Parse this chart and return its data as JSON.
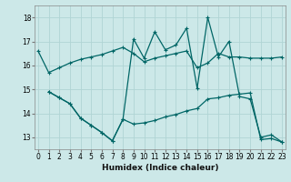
{
  "xlabel": "Humidex (Indice chaleur)",
  "xlim": [
    -0.3,
    23.3
  ],
  "ylim": [
    12.5,
    18.5
  ],
  "yticks": [
    13,
    14,
    15,
    16,
    17,
    18
  ],
  "xticks": [
    0,
    1,
    2,
    3,
    4,
    5,
    6,
    7,
    8,
    9,
    10,
    11,
    12,
    13,
    14,
    15,
    16,
    17,
    18,
    19,
    20,
    21,
    22,
    23
  ],
  "bg_color": "#cce8e8",
  "grid_color": "#b0d4d4",
  "line_color": "#006666",
  "line1_x": [
    0,
    1,
    2,
    3,
    4,
    5,
    6,
    7,
    8,
    9,
    10,
    11,
    12,
    13,
    14,
    15,
    16,
    17,
    18,
    19,
    20,
    21,
    22,
    23
  ],
  "line1_y": [
    16.6,
    15.7,
    15.9,
    16.1,
    16.25,
    16.35,
    16.45,
    16.6,
    16.75,
    16.5,
    16.15,
    16.3,
    16.4,
    16.5,
    16.6,
    15.9,
    16.1,
    16.5,
    16.35,
    16.35,
    16.3,
    16.3,
    16.3,
    16.35
  ],
  "line2_x": [
    1,
    2,
    3,
    4,
    5,
    6,
    7,
    8,
    9,
    10,
    11,
    12,
    13,
    14,
    15,
    16,
    17,
    18,
    19,
    20,
    21,
    22,
    23
  ],
  "line2_y": [
    14.9,
    14.65,
    14.4,
    13.8,
    13.5,
    13.2,
    12.85,
    13.75,
    17.1,
    16.3,
    17.4,
    16.65,
    16.85,
    17.55,
    15.05,
    18.0,
    16.35,
    17.0,
    14.7,
    14.6,
    13.0,
    13.1,
    12.8
  ],
  "line3_x": [
    1,
    2,
    3,
    4,
    5,
    6,
    7,
    8,
    9,
    10,
    11,
    12,
    13,
    14,
    15,
    16,
    17,
    18,
    19,
    20,
    21,
    22,
    23
  ],
  "line3_y": [
    14.9,
    14.65,
    14.4,
    13.8,
    13.5,
    13.2,
    12.85,
    13.75,
    13.55,
    13.6,
    13.7,
    13.85,
    13.95,
    14.1,
    14.2,
    14.6,
    14.65,
    14.75,
    14.8,
    14.85,
    12.9,
    12.95,
    12.8
  ]
}
